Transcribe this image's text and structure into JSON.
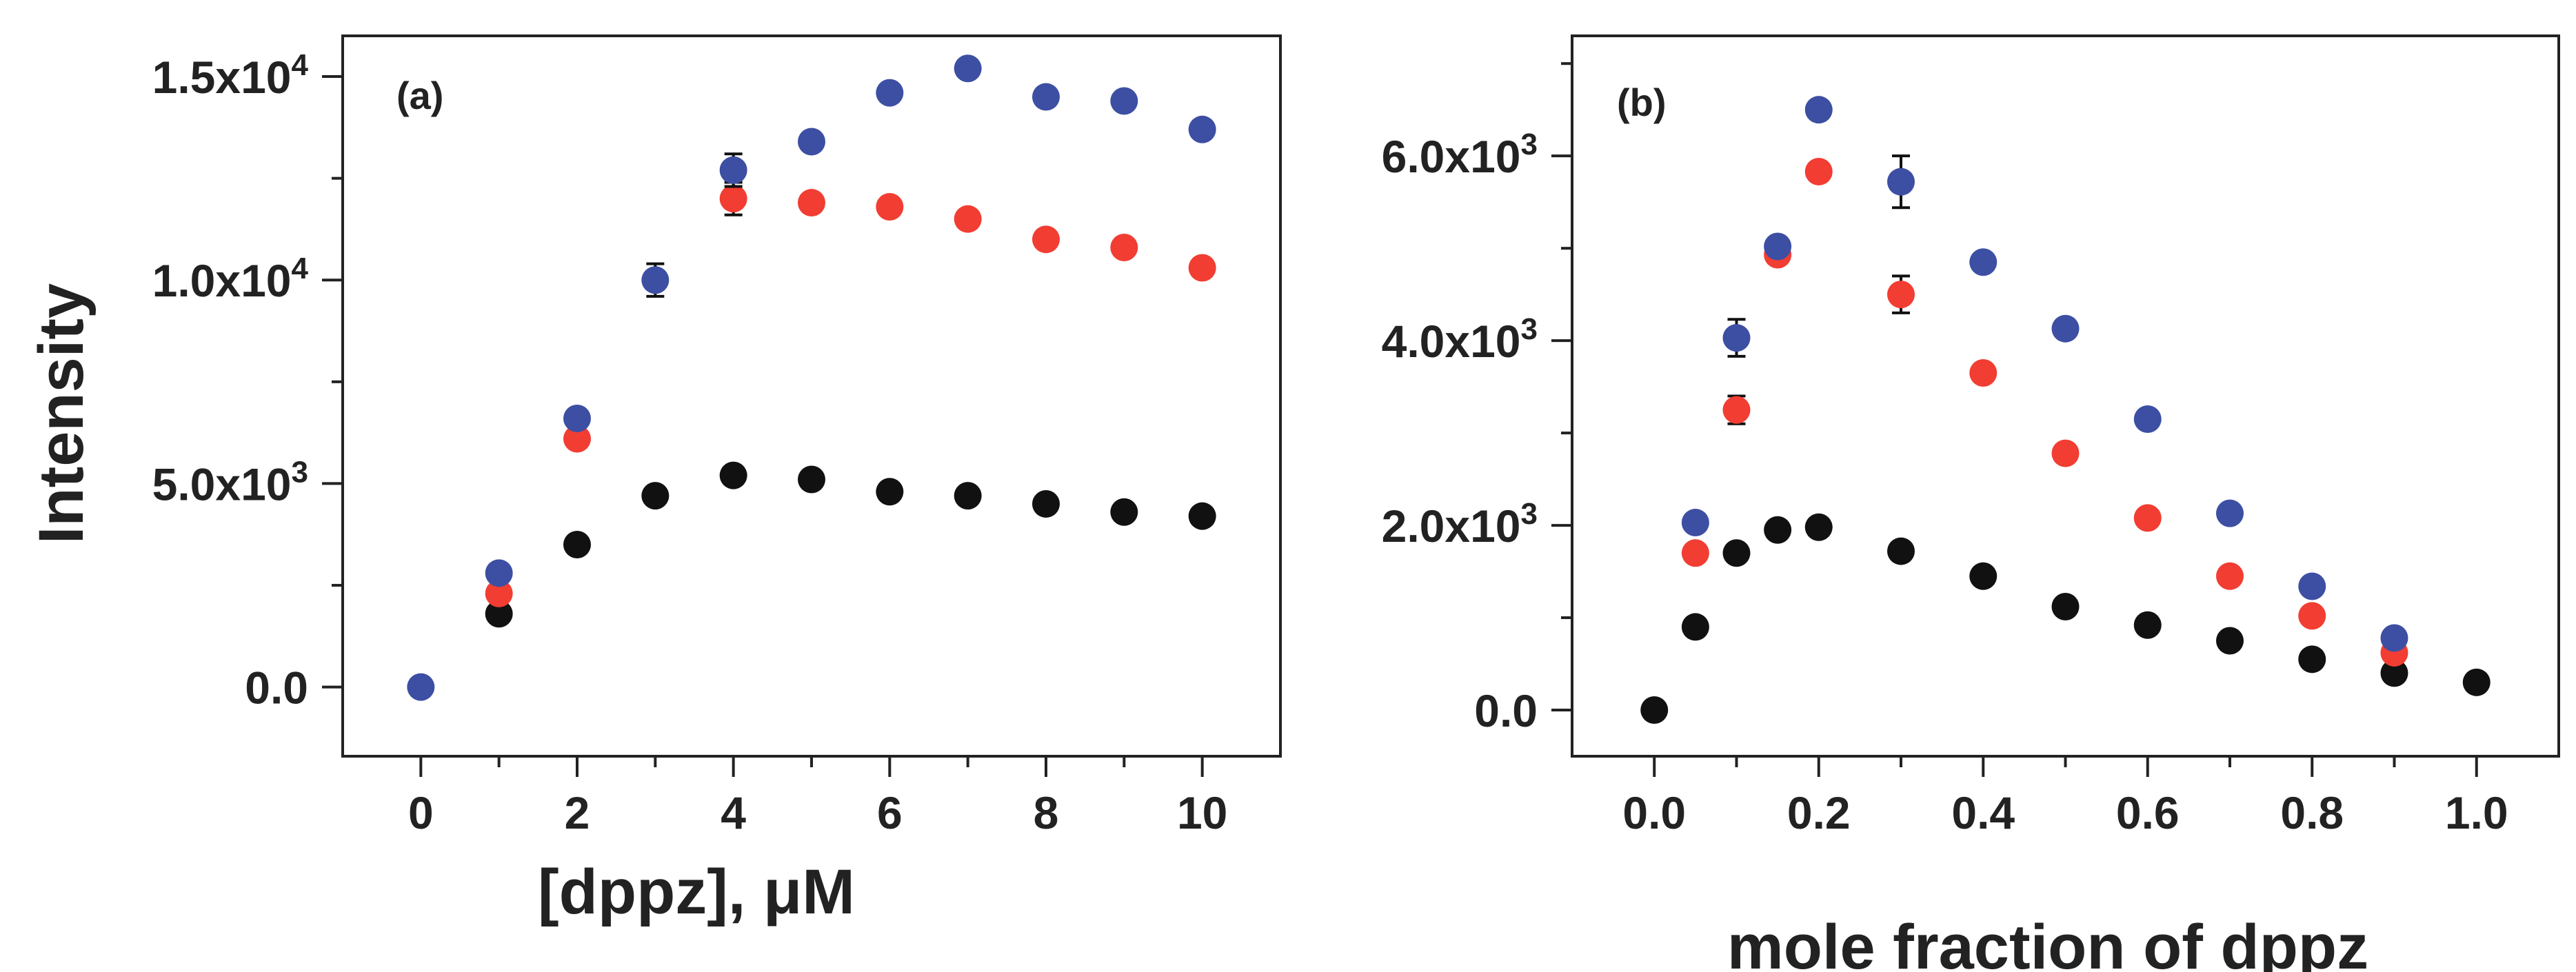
{
  "chart_data": [
    {
      "type": "scatter",
      "panel_label": "(a)",
      "xlabel": "[dppz], μM",
      "ylabel": "Intensity",
      "xlim": [
        -1,
        11
      ],
      "ylim": [
        -1700,
        16000
      ],
      "x_ticks": [
        0,
        2,
        4,
        6,
        8,
        10
      ],
      "x_tick_labels": [
        "0",
        "2",
        "4",
        "6",
        "8",
        "10"
      ],
      "x_minor_ticks": [
        1,
        3,
        5,
        7,
        9
      ],
      "y_ticks": [
        0,
        5000,
        10000,
        15000
      ],
      "y_tick_labels": [
        {
          "base": "0.0",
          "exp": ""
        },
        {
          "base": "5.0x10",
          "exp": "3"
        },
        {
          "base": "1.0x10",
          "exp": "4"
        },
        {
          "base": "1.5x10",
          "exp": "4"
        }
      ],
      "y_minor_ticks": [
        2500,
        7500,
        12500
      ],
      "series": [
        {
          "name": "black series",
          "color": "#111111",
          "x": [
            1,
            2,
            3,
            4,
            5,
            6,
            7,
            8,
            9,
            10
          ],
          "y": [
            1800,
            3500,
            4700,
            5200,
            5100,
            4800,
            4700,
            4500,
            4300,
            4200
          ]
        },
        {
          "name": "red series",
          "color": "#f23d33",
          "x": [
            1,
            2,
            4,
            5,
            6,
            7,
            8,
            9,
            10
          ],
          "y": [
            2300,
            6100,
            12000,
            11900,
            11800,
            11500,
            11000,
            10800,
            10300
          ],
          "error": [
            0,
            0,
            400,
            0,
            0,
            0,
            0,
            0,
            0
          ]
        },
        {
          "name": "blue series",
          "color": "#3d4fa3",
          "x": [
            0,
            1,
            2,
            3,
            4,
            5,
            6,
            7,
            8,
            9,
            10
          ],
          "y": [
            0,
            2800,
            6600,
            10000,
            12700,
            13400,
            14600,
            15200,
            14500,
            14400,
            13700
          ],
          "error": [
            0,
            0,
            0,
            400,
            400,
            0,
            0,
            0,
            0,
            0,
            0
          ]
        }
      ]
    },
    {
      "type": "scatter",
      "panel_label": "(b)",
      "xlabel": "mole fraction of dppz",
      "ylabel": "",
      "xlim": [
        -0.1,
        1.1
      ],
      "ylim": [
        -500,
        7300
      ],
      "x_ticks": [
        0.0,
        0.2,
        0.4,
        0.6,
        0.8,
        1.0
      ],
      "x_tick_labels": [
        "0.0",
        "0.2",
        "0.4",
        "0.6",
        "0.8",
        "1.0"
      ],
      "x_minor_ticks": [
        0.1,
        0.3,
        0.5,
        0.7,
        0.9
      ],
      "y_ticks": [
        0,
        2000,
        4000,
        6000
      ],
      "y_tick_labels": [
        {
          "base": "0.0",
          "exp": ""
        },
        {
          "base": "2.0x10",
          "exp": "3"
        },
        {
          "base": "4.0x10",
          "exp": "3"
        },
        {
          "base": "6.0x10",
          "exp": "3"
        }
      ],
      "y_minor_ticks": [
        1000,
        3000,
        5000,
        7000
      ],
      "series": [
        {
          "name": "black series",
          "color": "#111111",
          "x": [
            0.0,
            0.05,
            0.1,
            0.15,
            0.2,
            0.3,
            0.4,
            0.5,
            0.6,
            0.7,
            0.8,
            0.9,
            1.0
          ],
          "y": [
            0,
            900,
            1700,
            1950,
            1980,
            1720,
            1450,
            1120,
            920,
            750,
            550,
            400,
            300
          ]
        },
        {
          "name": "red series",
          "color": "#f23d33",
          "x": [
            0.05,
            0.1,
            0.15,
            0.2,
            0.3,
            0.4,
            0.5,
            0.6,
            0.7,
            0.8,
            0.9
          ],
          "y": [
            1700,
            3250,
            4930,
            5830,
            4500,
            3650,
            2780,
            2080,
            1450,
            1020,
            620
          ],
          "error": [
            0,
            150,
            0,
            0,
            200,
            0,
            0,
            0,
            0,
            0,
            0
          ]
        },
        {
          "name": "blue series",
          "color": "#3d4fa3",
          "x": [
            0.05,
            0.1,
            0.15,
            0.2,
            0.3,
            0.4,
            0.5,
            0.6,
            0.7,
            0.8,
            0.9
          ],
          "y": [
            2030,
            4030,
            5020,
            6500,
            5720,
            4850,
            4130,
            3150,
            2130,
            1340,
            780
          ],
          "error": [
            0,
            200,
            0,
            0,
            280,
            0,
            0,
            0,
            0,
            0,
            0
          ]
        }
      ]
    }
  ]
}
